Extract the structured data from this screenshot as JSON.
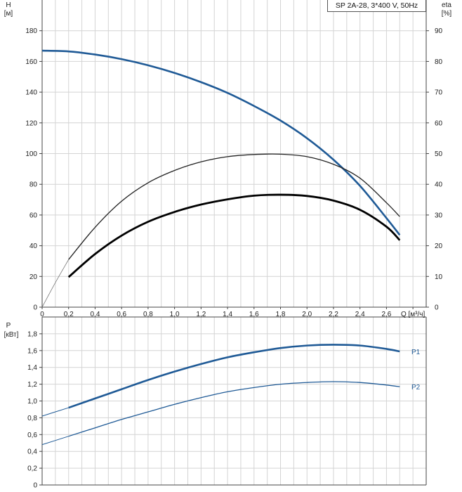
{
  "legend": "SP 2A-28, 3*400 V, 50Hz",
  "chart_data": [
    {
      "type": "line",
      "name": "head-efficiency",
      "ylabel_left_symbol": "H",
      "ylabel_left_unit": "[м]",
      "ylabel_right_symbol": "eta",
      "ylabel_right_unit": "[%]",
      "xlabel": "Q [м³/ч]",
      "xlim": [
        0,
        2.9
      ],
      "ylim_left": [
        0,
        200
      ],
      "ylim_right": [
        0,
        100
      ],
      "x_ticks": [
        "0",
        "0,2",
        "0,4",
        "0,6",
        "0,8",
        "1,0",
        "1,2",
        "1,4",
        "1,6",
        "1,8",
        "2,0",
        "2,2",
        "2,4",
        "2,6"
      ],
      "y_ticks_left": [
        "0",
        "20",
        "40",
        "60",
        "80",
        "100",
        "120",
        "140",
        "160",
        "180"
      ],
      "y_ticks_right": [
        "0",
        "10",
        "20",
        "30",
        "40",
        "50",
        "60",
        "70",
        "80",
        "90"
      ],
      "grid": true,
      "series": [
        {
          "role": "H",
          "axis": "left",
          "color": "#1f5a96",
          "x": [
            0,
            0.2,
            0.4,
            0.6,
            0.8,
            1.0,
            1.2,
            1.4,
            1.6,
            1.8,
            2.0,
            2.2,
            2.4,
            2.6,
            2.7
          ],
          "y": [
            167,
            166.5,
            164.5,
            161.5,
            157.5,
            152.5,
            146.5,
            139.5,
            131,
            121.5,
            110,
            96,
            79,
            58,
            47
          ]
        },
        {
          "role": "eta-thin",
          "axis": "right",
          "color": "#222222",
          "x": [
            0,
            0.1,
            0.2,
            0.4,
            0.6,
            0.8,
            1.0,
            1.2,
            1.4,
            1.6,
            1.8,
            2.0,
            2.2,
            2.4,
            2.6,
            2.7
          ],
          "y": [
            0,
            8,
            15.5,
            26,
            34.5,
            40.5,
            44.5,
            47.3,
            49,
            49.7,
            49.8,
            49,
            46.5,
            42,
            34,
            29.5
          ]
        },
        {
          "role": "eta-thick",
          "axis": "right",
          "color": "#000000",
          "x": [
            0.2,
            0.4,
            0.6,
            0.8,
            1.0,
            1.2,
            1.4,
            1.6,
            1.8,
            2.0,
            2.2,
            2.4,
            2.6,
            2.7
          ],
          "y": [
            9.8,
            17.3,
            23.3,
            27.8,
            31,
            33.4,
            35.1,
            36.3,
            36.6,
            36.2,
            34.7,
            31.7,
            26.2,
            21.8
          ]
        }
      ]
    },
    {
      "type": "line",
      "name": "power",
      "ylabel_symbol": "P",
      "ylabel_unit": "[кВт]",
      "xlim": [
        0,
        2.9
      ],
      "ylim": [
        0,
        2.0
      ],
      "y_ticks": [
        "0",
        "0,2",
        "0,4",
        "0,6",
        "0,8",
        "1,0",
        "1,2",
        "1,4",
        "1,6",
        "1,8"
      ],
      "grid": true,
      "series": [
        {
          "name": "P1",
          "color": "#1f5a96",
          "x": [
            0,
            0.2,
            0.4,
            0.6,
            0.8,
            1.0,
            1.2,
            1.4,
            1.6,
            1.8,
            2.0,
            2.2,
            2.4,
            2.6,
            2.7
          ],
          "y": [
            0.82,
            0.92,
            1.03,
            1.14,
            1.25,
            1.35,
            1.44,
            1.52,
            1.58,
            1.63,
            1.66,
            1.67,
            1.66,
            1.62,
            1.59
          ]
        },
        {
          "name": "P2",
          "color": "#1f5a96",
          "x": [
            0,
            0.2,
            0.4,
            0.6,
            0.8,
            1.0,
            1.2,
            1.4,
            1.6,
            1.8,
            2.0,
            2.2,
            2.4,
            2.6,
            2.7
          ],
          "y": [
            0.48,
            0.58,
            0.68,
            0.78,
            0.87,
            0.96,
            1.04,
            1.11,
            1.16,
            1.2,
            1.22,
            1.23,
            1.22,
            1.19,
            1.17
          ]
        }
      ]
    }
  ]
}
